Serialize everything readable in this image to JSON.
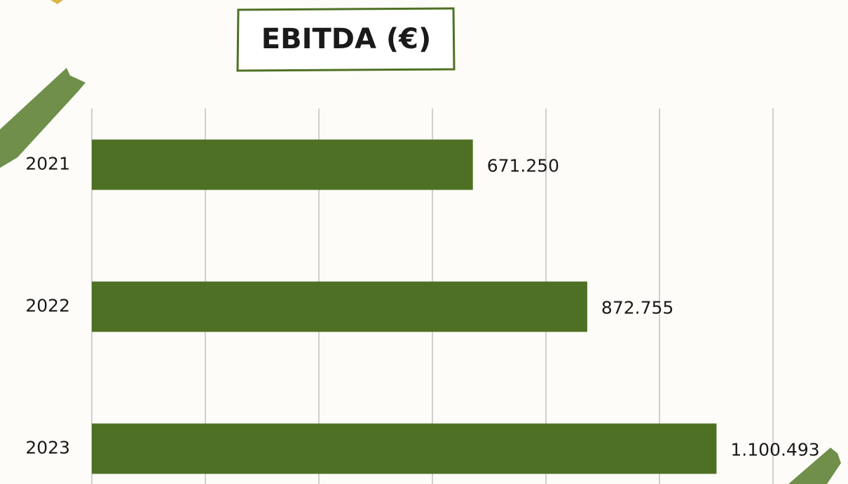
{
  "chart_data": {
    "type": "barh",
    "title": "EBITDA (€)",
    "categories": [
      "2021",
      "2022",
      "2023"
    ],
    "values": [
      671250,
      872755,
      1100493
    ],
    "value_labels": [
      "671.250",
      "872.755",
      "1.100.493"
    ],
    "color": "#4e7024",
    "xlim": [
      0,
      1200000
    ],
    "xticks": [
      0,
      200000,
      400000,
      600000,
      800000,
      1000000,
      1200000
    ],
    "grid": true
  }
}
